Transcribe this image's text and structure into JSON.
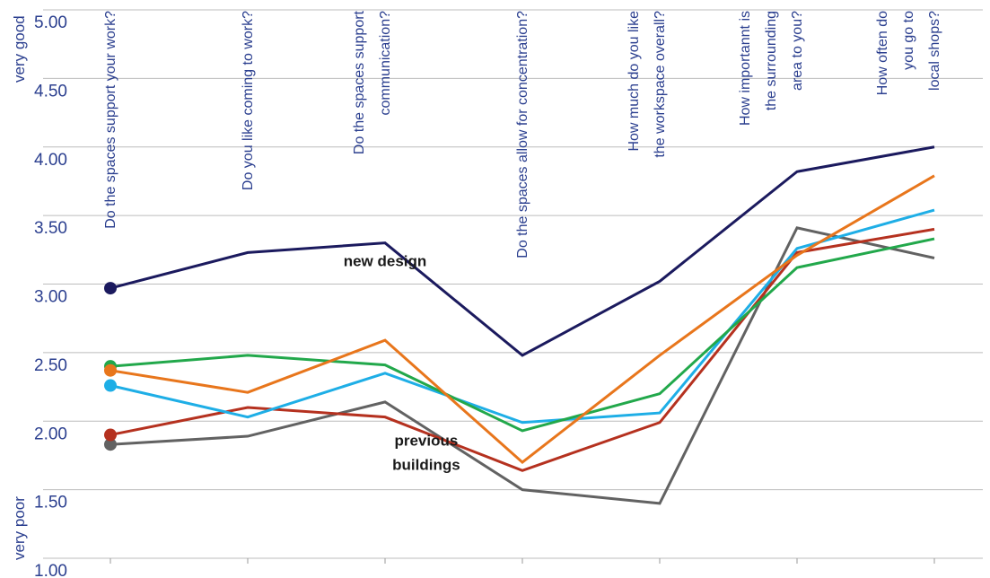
{
  "chart_data": {
    "type": "line",
    "ylim": [
      1.0,
      5.0
    ],
    "grid": true,
    "y_ticks": [
      "1.00",
      "1.50",
      "2.00",
      "2.50",
      "3.00",
      "3.50",
      "4.00",
      "4.50",
      "5.00"
    ],
    "y_end_labels": {
      "top": "very good",
      "bottom": "very poor"
    },
    "categories": [
      [
        "Do the spaces support your work?"
      ],
      [
        "Do you like coming to work?"
      ],
      [
        "Do the spaces support",
        "communication?"
      ],
      [
        "Do the spaces allow for concentration?"
      ],
      [
        "How much do you like",
        "the workspace overall?"
      ],
      [
        "How importannt is",
        "the  surrounding",
        "area to you?"
      ],
      [
        "How often do",
        "you go to",
        "local shops?"
      ]
    ],
    "series": [
      {
        "color": "#1b1a5e",
        "values": [
          2.97,
          3.23,
          3.3,
          2.48,
          3.02,
          3.82,
          4.0
        ]
      },
      {
        "color": "#e8761c",
        "values": [
          2.37,
          2.21,
          2.59,
          1.7,
          2.48,
          3.21,
          3.79
        ]
      },
      {
        "color": "#22a84b",
        "values": [
          2.4,
          2.48,
          2.41,
          1.93,
          2.2,
          3.12,
          3.33
        ]
      },
      {
        "color": "#1eaee6",
        "values": [
          2.26,
          2.03,
          2.35,
          1.99,
          2.06,
          3.26,
          3.54
        ]
      },
      {
        "color": "#b5311f",
        "values": [
          1.9,
          2.1,
          2.03,
          1.64,
          1.99,
          3.23,
          3.4
        ]
      },
      {
        "color": "#626262",
        "values": [
          1.83,
          1.89,
          2.14,
          1.5,
          1.4,
          3.41,
          3.19
        ]
      }
    ],
    "annotations": [
      {
        "text": [
          "new design"
        ],
        "x": 2.0,
        "y": 3.13
      },
      {
        "text": [
          "previous",
          "buildings"
        ],
        "x": 2.3,
        "y": 1.82
      }
    ]
  }
}
